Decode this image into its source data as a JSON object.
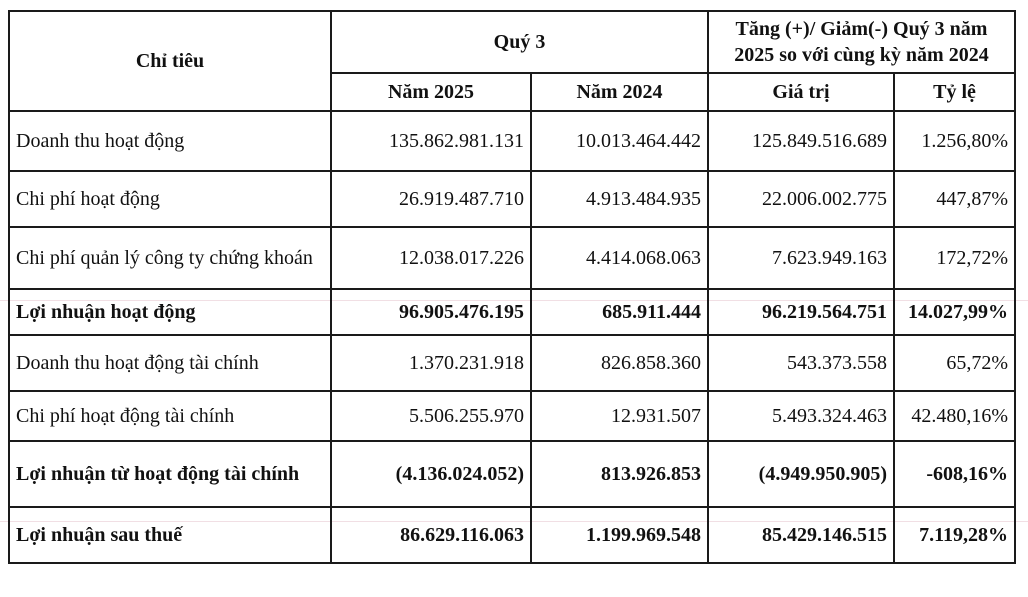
{
  "table": {
    "columns": {
      "criteria": "Chỉ tiêu",
      "group_q3": "Quý 3",
      "group_change": "Tăng (+)/ Giảm(-) Quý 3 năm 2025 so với cùng kỳ năm 2024",
      "sub": [
        "Năm 2025",
        "Năm 2024",
        "Giá trị",
        "Tỷ lệ"
      ]
    },
    "rows": [
      {
        "label": "Doanh thu hoạt động",
        "y2025": "135.862.981.131",
        "y2024": "10.013.464.442",
        "value": "125.849.516.689",
        "ratio": "1.256,80%"
      },
      {
        "label": "Chi phí hoạt động",
        "y2025": "26.919.487.710",
        "y2024": "4.913.484.935",
        "value": "22.006.002.775",
        "ratio": "447,87%"
      },
      {
        "label": "Chi phí quản lý công ty chứng khoán",
        "y2025": "12.038.017.226",
        "y2024": "4.414.068.063",
        "value": "7.623.949.163",
        "ratio": "172,72%"
      },
      {
        "label": "Lợi nhuận hoạt động",
        "y2025": "96.905.476.195",
        "y2024": "685.911.444",
        "value": "96.219.564.751",
        "ratio": "14.027,99%"
      },
      {
        "label": "Doanh thu hoạt động tài chính",
        "y2025": "1.370.231.918",
        "y2024": "826.858.360",
        "value": "543.373.558",
        "ratio": "65,72%"
      },
      {
        "label": "Chi phí hoạt động tài chính",
        "y2025": "5.506.255.970",
        "y2024": "12.931.507",
        "value": "5.493.324.463",
        "ratio": "42.480,16%"
      },
      {
        "label": "Lợi nhuận từ hoạt động tài chính",
        "y2025": "(4.136.024.052)",
        "y2024": "813.926.853",
        "value": "(4.949.950.905)",
        "ratio": "-608,16%"
      },
      {
        "label": "Lợi nhuận sau thuế",
        "y2025": "86.629.116.063",
        "y2024": "1.199.969.548",
        "value": "85.429.146.515",
        "ratio": "7.119,28%"
      }
    ]
  }
}
